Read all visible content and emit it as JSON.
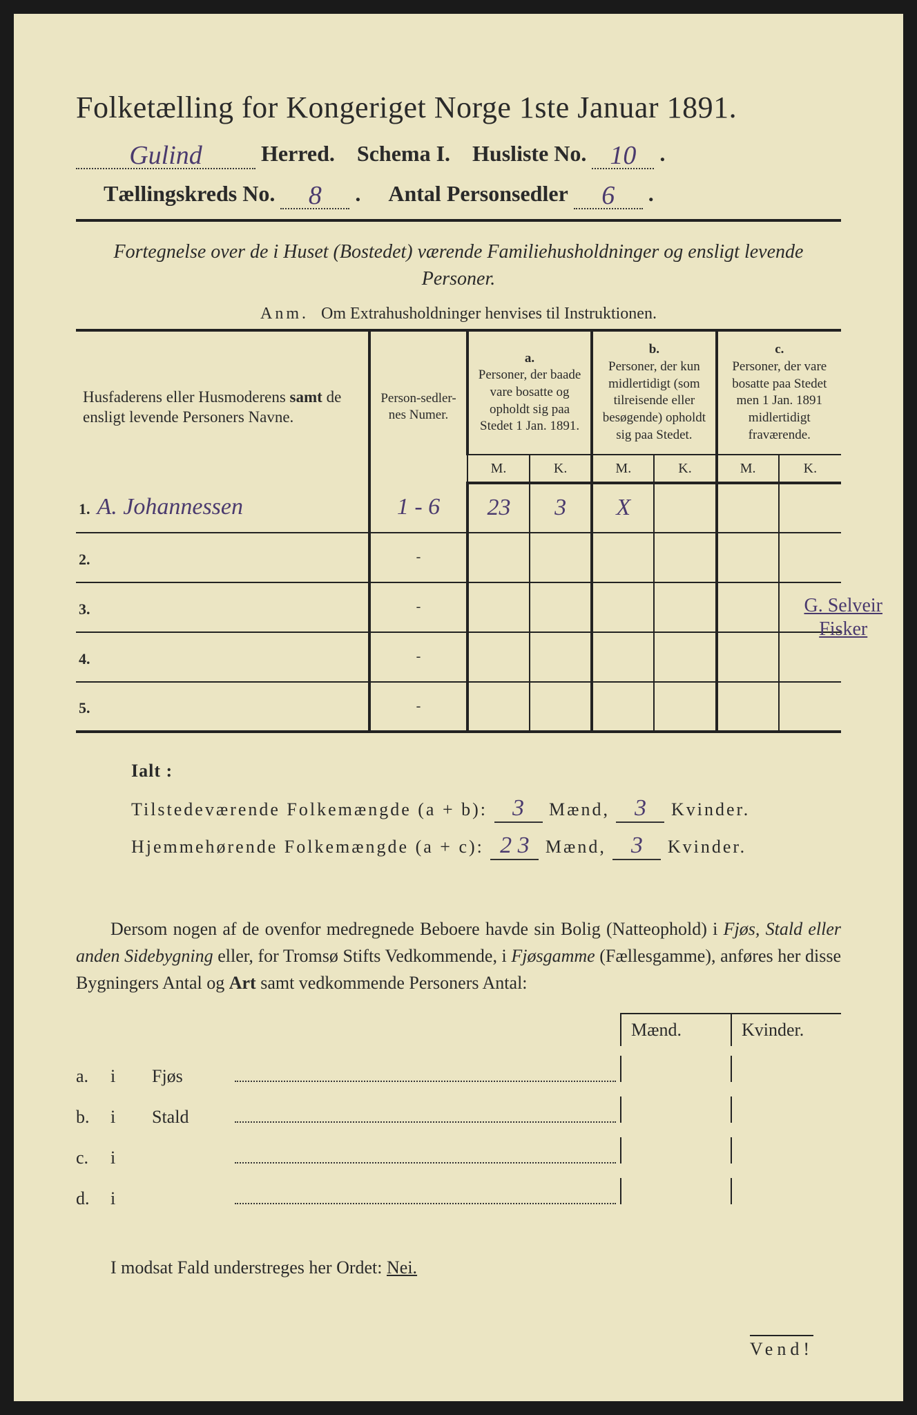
{
  "title": "Folketælling for Kongeriget Norge 1ste Januar 1891.",
  "header": {
    "herred_value": "Gulind",
    "herred_label": "Herred.",
    "schema_label": "Schema I.",
    "husliste_label": "Husliste No.",
    "husliste_value": "10",
    "kreds_label": "Tællingskreds No.",
    "kreds_value": "8",
    "antal_label": "Antal Personsedler",
    "antal_value": "6"
  },
  "subtitle": "Fortegnelse over de i Huset (Bostedet) værende Familiehusholdninger og ensligt levende Personer.",
  "anm_label": "Anm.",
  "anm_text": "Om Extrahusholdninger henvises til Instruktionen.",
  "table": {
    "col_name": "Husfaderens eller Husmoderens samt de ensligt levende Personers Navne.",
    "col_numer": "Person-sedler-nes Numer.",
    "col_a_label": "a.",
    "col_a": "Personer, der baade vare bosatte og opholdt sig paa Stedet 1 Jan. 1891.",
    "col_b_label": "b.",
    "col_b": "Personer, der kun midlertidigt (som tilreisende eller besøgende) opholdt sig paa Stedet.",
    "col_c_label": "c.",
    "col_c": "Personer, der vare bosatte paa Stedet men 1 Jan. 1891 midlertidigt fraværende.",
    "mk_m": "M.",
    "mk_k": "K.",
    "rows": [
      {
        "num": "1.",
        "name": "A. Johannessen",
        "numer": "1 - 6",
        "a_m": "23",
        "a_k": "3",
        "b_m": "X",
        "b_k": "",
        "c_m": "",
        "c_k": ""
      },
      {
        "num": "2.",
        "name": "",
        "numer": "-",
        "a_m": "",
        "a_k": "",
        "b_m": "",
        "b_k": "",
        "c_m": "",
        "c_k": ""
      },
      {
        "num": "3.",
        "name": "",
        "numer": "-",
        "a_m": "",
        "a_k": "",
        "b_m": "",
        "b_k": "",
        "c_m": "",
        "c_k": ""
      },
      {
        "num": "4.",
        "name": "",
        "numer": "-",
        "a_m": "",
        "a_k": "",
        "b_m": "",
        "b_k": "",
        "c_m": "",
        "c_k": ""
      },
      {
        "num": "5.",
        "name": "",
        "numer": "-",
        "a_m": "",
        "a_k": "",
        "b_m": "",
        "b_k": "",
        "c_m": "",
        "c_k": ""
      }
    ]
  },
  "side_note_1": "G. Selveir",
  "side_note_2": "Fisker",
  "ialt": {
    "title": "Ialt :",
    "line1_label": "Tilstedeværende Folkemængde (a + b):",
    "line1_m": "3",
    "line1_k": "3",
    "line2_label": "Hjemmehørende Folkemængde (a + c):",
    "line2_m": "2 3",
    "line2_k": "3",
    "maend": "Mænd,",
    "kvinder": "Kvinder."
  },
  "paragraph": "Dersom nogen af de ovenfor medregnede Beboere havde sin Bolig (Natteophold) i Fjøs, Stald eller anden Sidebygning eller, for Tromsø Stifts Vedkommende, i Fjøsgamme (Fællesgamme), anføres her disse Bygningers Antal og Art samt vedkommende Personers Antal:",
  "subtable": {
    "maend": "Mænd.",
    "kvinder": "Kvinder.",
    "rows": [
      {
        "lbl": "a.",
        "i": "i",
        "what": "Fjøs"
      },
      {
        "lbl": "b.",
        "i": "i",
        "what": "Stald"
      },
      {
        "lbl": "c.",
        "i": "i",
        "what": ""
      },
      {
        "lbl": "d.",
        "i": "i",
        "what": ""
      }
    ]
  },
  "footer_text_1": "I modsat Fald understreges her Ordet: ",
  "footer_nei": "Nei.",
  "vend": "Vend!",
  "colors": {
    "paper": "#ebe5c3",
    "ink": "#2a2a2a",
    "handwriting": "#4a3a6e"
  }
}
